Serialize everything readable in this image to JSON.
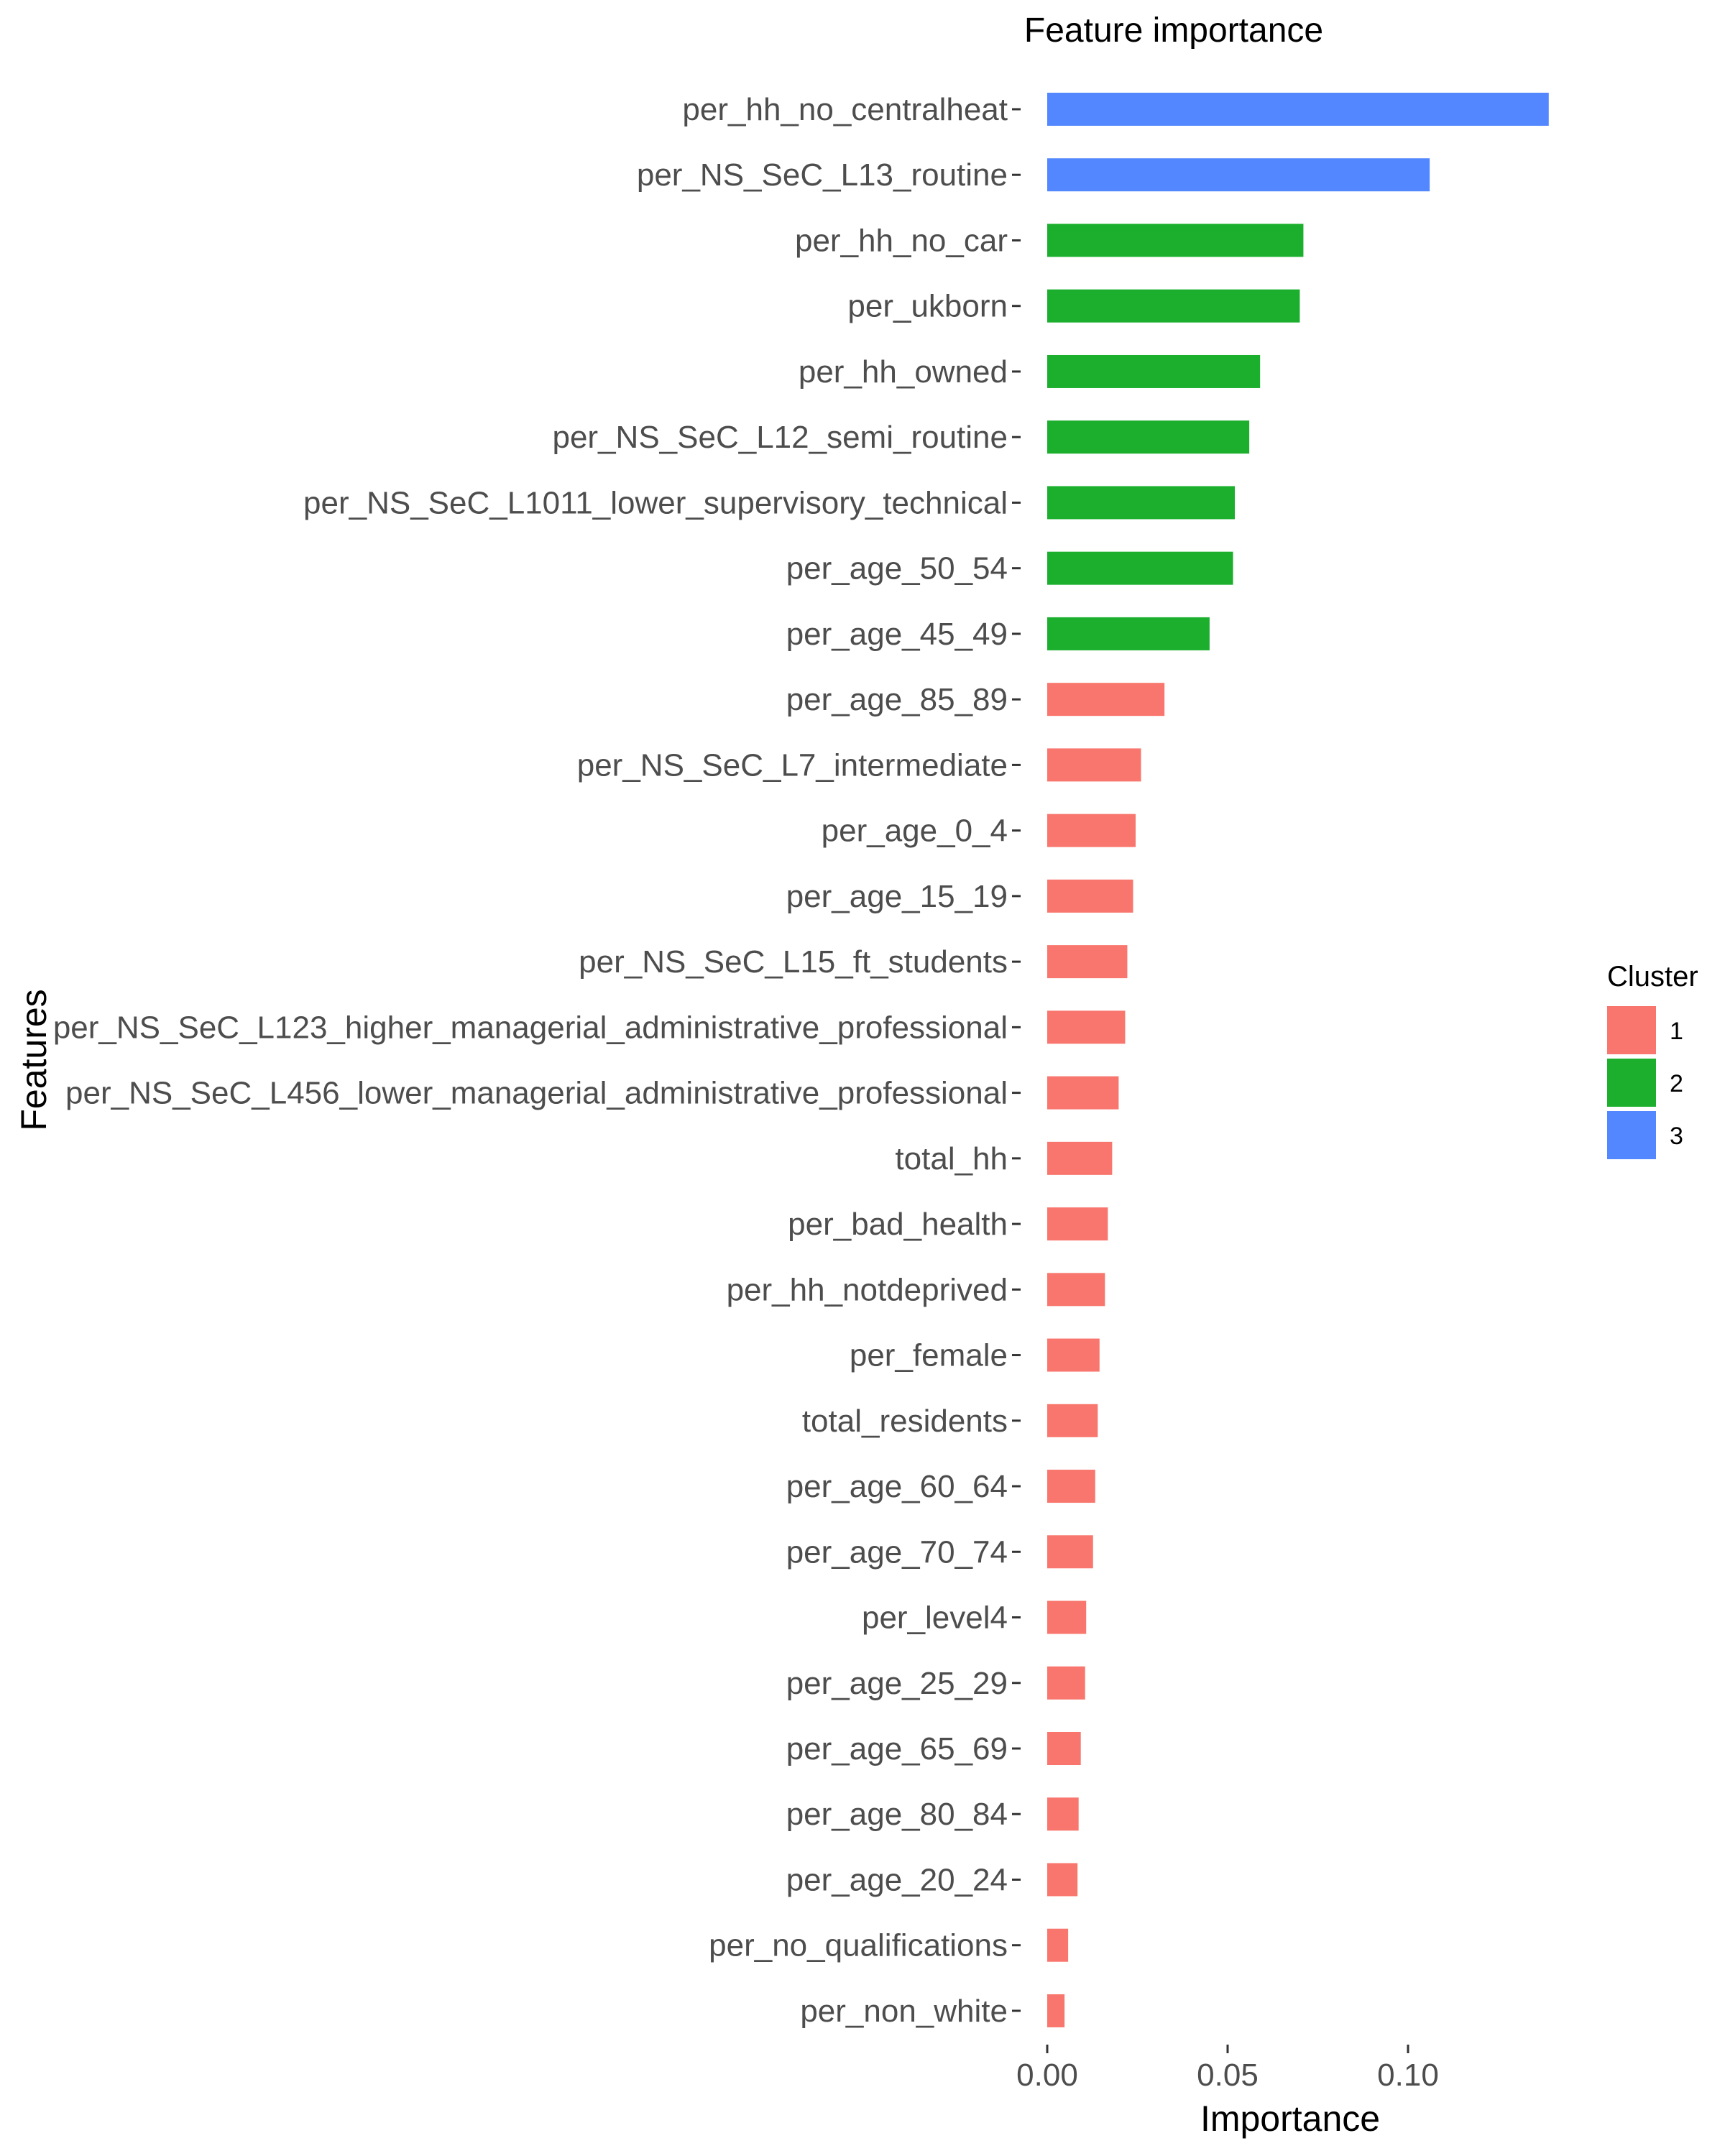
{
  "chart_data": {
    "type": "bar",
    "orientation": "horizontal",
    "title": "Feature importance",
    "xlabel": "Importance",
    "ylabel": "Features",
    "xlim": [
      0,
      0.14
    ],
    "x_ticks": [
      {
        "value": 0.0,
        "label": "0.00"
      },
      {
        "value": 0.05,
        "label": "0.05"
      },
      {
        "value": 0.1,
        "label": "0.10"
      }
    ],
    "grid": false,
    "legend": {
      "title": "Cluster",
      "position": "right",
      "entries": [
        {
          "label": "1",
          "color": "#F8766D"
        },
        {
          "label": "2",
          "color": "#1CAF2E"
        },
        {
          "label": "3",
          "color": "#5287FF"
        }
      ]
    },
    "bars": [
      {
        "feature": "per_hh_no_centralheat",
        "value": 0.139,
        "cluster": "3"
      },
      {
        "feature": "per_NS_SeC_L13_routine",
        "value": 0.106,
        "cluster": "3"
      },
      {
        "feature": "per_hh_no_car",
        "value": 0.071,
        "cluster": "2"
      },
      {
        "feature": "per_ukborn",
        "value": 0.07,
        "cluster": "2"
      },
      {
        "feature": "per_hh_owned",
        "value": 0.059,
        "cluster": "2"
      },
      {
        "feature": "per_NS_SeC_L12_semi_routine",
        "value": 0.056,
        "cluster": "2"
      },
      {
        "feature": "per_NS_SeC_L1011_lower_supervisory_technical",
        "value": 0.052,
        "cluster": "2"
      },
      {
        "feature": "per_age_50_54",
        "value": 0.0515,
        "cluster": "2"
      },
      {
        "feature": "per_age_45_49",
        "value": 0.045,
        "cluster": "2"
      },
      {
        "feature": "per_age_85_89",
        "value": 0.0325,
        "cluster": "1"
      },
      {
        "feature": "per_NS_SeC_L7_intermediate",
        "value": 0.026,
        "cluster": "1"
      },
      {
        "feature": "per_age_0_4",
        "value": 0.0245,
        "cluster": "1"
      },
      {
        "feature": "per_age_15_19",
        "value": 0.0238,
        "cluster": "1"
      },
      {
        "feature": "per_NS_SeC_L15_ft_students",
        "value": 0.0222,
        "cluster": "1"
      },
      {
        "feature": "per_NS_SeC_L123_higher_managerial_administrative_professional",
        "value": 0.0216,
        "cluster": "1"
      },
      {
        "feature": "per_NS_SeC_L456_lower_managerial_administrative_professional",
        "value": 0.0198,
        "cluster": "1"
      },
      {
        "feature": "total_hh",
        "value": 0.018,
        "cluster": "1"
      },
      {
        "feature": "per_bad_health",
        "value": 0.0168,
        "cluster": "1"
      },
      {
        "feature": "per_hh_notdeprived",
        "value": 0.016,
        "cluster": "1"
      },
      {
        "feature": "per_female",
        "value": 0.0145,
        "cluster": "1"
      },
      {
        "feature": "total_residents",
        "value": 0.014,
        "cluster": "1"
      },
      {
        "feature": "per_age_60_64",
        "value": 0.0133,
        "cluster": "1"
      },
      {
        "feature": "per_age_70_74",
        "value": 0.0127,
        "cluster": "1"
      },
      {
        "feature": "per_level4",
        "value": 0.0108,
        "cluster": "1"
      },
      {
        "feature": "per_age_25_29",
        "value": 0.0105,
        "cluster": "1"
      },
      {
        "feature": "per_age_65_69",
        "value": 0.0093,
        "cluster": "1"
      },
      {
        "feature": "per_age_80_84",
        "value": 0.0087,
        "cluster": "1"
      },
      {
        "feature": "per_age_20_24",
        "value": 0.0084,
        "cluster": "1"
      },
      {
        "feature": "per_no_qualifications",
        "value": 0.0058,
        "cluster": "1"
      },
      {
        "feature": "per_non_white",
        "value": 0.0048,
        "cluster": "1"
      }
    ]
  }
}
